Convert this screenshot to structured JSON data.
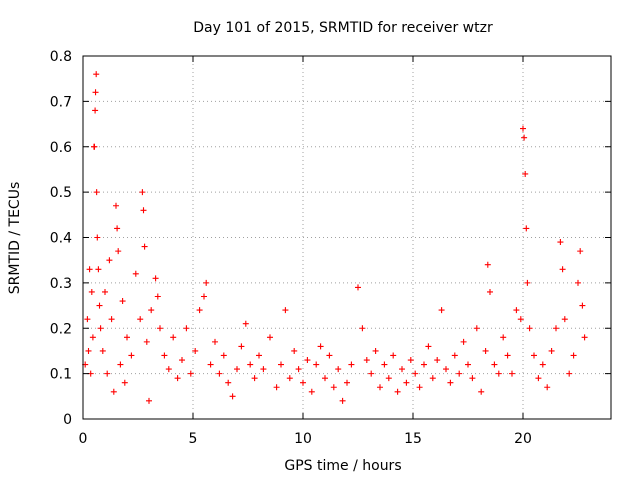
{
  "chart_data": {
    "type": "scatter",
    "title": "Day 101 of 2015, SRMTID for receiver wtzr",
    "xlabel": "GPS time / hours",
    "ylabel": "SRMTID / TECUs",
    "xlim": [
      0,
      24
    ],
    "ylim": [
      0,
      0.8
    ],
    "xticks": [
      0,
      5,
      10,
      15,
      20
    ],
    "xtick_labels": [
      "0",
      "5",
      "10",
      "15",
      "20"
    ],
    "yticks": [
      0,
      0.1,
      0.2,
      0.3,
      0.4,
      0.5,
      0.6,
      0.7,
      0.8
    ],
    "ytick_labels": [
      "0",
      "0.1",
      "0.2",
      "0.3",
      "0.4",
      "0.5",
      "0.6",
      "0.7",
      "0.8"
    ],
    "grid": true,
    "marker": "+",
    "color": "#ff0000",
    "series": [
      {
        "name": "wtzr",
        "points": [
          [
            0.1,
            0.12
          ],
          [
            0.2,
            0.22
          ],
          [
            0.25,
            0.15
          ],
          [
            0.3,
            0.33
          ],
          [
            0.35,
            0.1
          ],
          [
            0.4,
            0.28
          ],
          [
            0.45,
            0.18
          ],
          [
            0.5,
            0.6
          ],
          [
            0.52,
            0.6
          ],
          [
            0.55,
            0.68
          ],
          [
            0.57,
            0.72
          ],
          [
            0.6,
            0.76
          ],
          [
            0.62,
            0.5
          ],
          [
            0.65,
            0.4
          ],
          [
            0.7,
            0.33
          ],
          [
            0.75,
            0.25
          ],
          [
            0.8,
            0.2
          ],
          [
            0.9,
            0.15
          ],
          [
            1.0,
            0.28
          ],
          [
            1.1,
            0.1
          ],
          [
            1.2,
            0.35
          ],
          [
            1.3,
            0.22
          ],
          [
            1.4,
            0.06
          ],
          [
            1.5,
            0.47
          ],
          [
            1.55,
            0.42
          ],
          [
            1.6,
            0.37
          ],
          [
            1.7,
            0.12
          ],
          [
            1.8,
            0.26
          ],
          [
            1.9,
            0.08
          ],
          [
            2.0,
            0.18
          ],
          [
            2.2,
            0.14
          ],
          [
            2.4,
            0.32
          ],
          [
            2.6,
            0.22
          ],
          [
            2.7,
            0.5
          ],
          [
            2.75,
            0.46
          ],
          [
            2.8,
            0.38
          ],
          [
            2.9,
            0.17
          ],
          [
            3.0,
            0.04
          ],
          [
            3.1,
            0.24
          ],
          [
            3.3,
            0.31
          ],
          [
            3.4,
            0.27
          ],
          [
            3.5,
            0.2
          ],
          [
            3.7,
            0.14
          ],
          [
            3.9,
            0.11
          ],
          [
            4.1,
            0.18
          ],
          [
            4.3,
            0.09
          ],
          [
            4.5,
            0.13
          ],
          [
            4.7,
            0.2
          ],
          [
            4.9,
            0.1
          ],
          [
            5.1,
            0.15
          ],
          [
            5.3,
            0.24
          ],
          [
            5.5,
            0.27
          ],
          [
            5.6,
            0.3
          ],
          [
            5.8,
            0.12
          ],
          [
            6.0,
            0.17
          ],
          [
            6.2,
            0.1
          ],
          [
            6.4,
            0.14
          ],
          [
            6.6,
            0.08
          ],
          [
            6.8,
            0.05
          ],
          [
            7.0,
            0.11
          ],
          [
            7.2,
            0.16
          ],
          [
            7.4,
            0.21
          ],
          [
            7.6,
            0.12
          ],
          [
            7.8,
            0.09
          ],
          [
            8.0,
            0.14
          ],
          [
            8.2,
            0.11
          ],
          [
            8.5,
            0.18
          ],
          [
            8.8,
            0.07
          ],
          [
            9.0,
            0.12
          ],
          [
            9.2,
            0.24
          ],
          [
            9.4,
            0.09
          ],
          [
            9.6,
            0.15
          ],
          [
            9.8,
            0.11
          ],
          [
            10.0,
            0.08
          ],
          [
            10.2,
            0.13
          ],
          [
            10.4,
            0.06
          ],
          [
            10.6,
            0.12
          ],
          [
            10.8,
            0.16
          ],
          [
            11.0,
            0.09
          ],
          [
            11.2,
            0.14
          ],
          [
            11.4,
            0.07
          ],
          [
            11.6,
            0.11
          ],
          [
            11.8,
            0.04
          ],
          [
            12.0,
            0.08
          ],
          [
            12.2,
            0.12
          ],
          [
            12.5,
            0.29
          ],
          [
            12.7,
            0.2
          ],
          [
            12.9,
            0.13
          ],
          [
            13.1,
            0.1
          ],
          [
            13.3,
            0.15
          ],
          [
            13.5,
            0.07
          ],
          [
            13.7,
            0.12
          ],
          [
            13.9,
            0.09
          ],
          [
            14.1,
            0.14
          ],
          [
            14.3,
            0.06
          ],
          [
            14.5,
            0.11
          ],
          [
            14.7,
            0.08
          ],
          [
            14.9,
            0.13
          ],
          [
            15.1,
            0.1
          ],
          [
            15.3,
            0.07
          ],
          [
            15.5,
            0.12
          ],
          [
            15.7,
            0.16
          ],
          [
            15.9,
            0.09
          ],
          [
            16.1,
            0.13
          ],
          [
            16.3,
            0.24
          ],
          [
            16.5,
            0.11
          ],
          [
            16.7,
            0.08
          ],
          [
            16.9,
            0.14
          ],
          [
            17.1,
            0.1
          ],
          [
            17.3,
            0.17
          ],
          [
            17.5,
            0.12
          ],
          [
            17.7,
            0.09
          ],
          [
            17.9,
            0.2
          ],
          [
            18.1,
            0.06
          ],
          [
            18.3,
            0.15
          ],
          [
            18.4,
            0.34
          ],
          [
            18.5,
            0.28
          ],
          [
            18.7,
            0.12
          ],
          [
            18.9,
            0.1
          ],
          [
            19.1,
            0.18
          ],
          [
            19.3,
            0.14
          ],
          [
            19.5,
            0.1
          ],
          [
            19.7,
            0.24
          ],
          [
            19.9,
            0.22
          ],
          [
            20.0,
            0.64
          ],
          [
            20.05,
            0.62
          ],
          [
            20.1,
            0.54
          ],
          [
            20.15,
            0.42
          ],
          [
            20.2,
            0.3
          ],
          [
            20.3,
            0.2
          ],
          [
            20.5,
            0.14
          ],
          [
            20.7,
            0.09
          ],
          [
            20.9,
            0.12
          ],
          [
            21.1,
            0.07
          ],
          [
            21.3,
            0.15
          ],
          [
            21.5,
            0.2
          ],
          [
            21.7,
            0.39
          ],
          [
            21.8,
            0.33
          ],
          [
            21.9,
            0.22
          ],
          [
            22.1,
            0.1
          ],
          [
            22.3,
            0.14
          ],
          [
            22.5,
            0.3
          ],
          [
            22.6,
            0.37
          ],
          [
            22.7,
            0.25
          ],
          [
            22.8,
            0.18
          ]
        ]
      }
    ]
  }
}
